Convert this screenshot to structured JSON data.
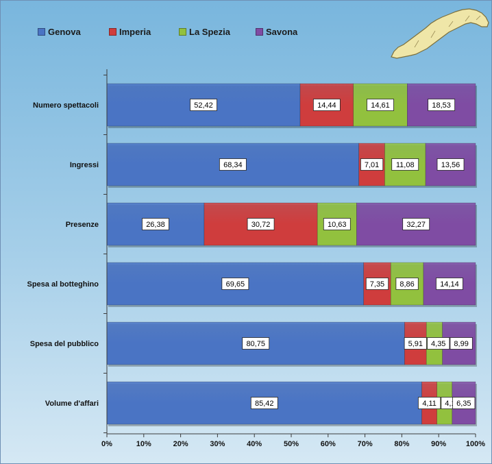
{
  "chart_data": {
    "type": "bar",
    "orientation": "horizontal",
    "stacked": true,
    "percent_stacked": true,
    "categories": [
      "Numero spettacoli",
      "Ingressi",
      "Presenze",
      "Spesa al botteghino",
      "Spesa del pubblico",
      "Volume d'affari"
    ],
    "series": [
      {
        "name": "Genova",
        "color": "#4a74c4",
        "values": [
          52.42,
          68.34,
          26.38,
          69.65,
          80.75,
          85.42
        ],
        "labels": [
          "52,42",
          "68,34",
          "26,38",
          "69,65",
          "80,75",
          "85,42"
        ]
      },
      {
        "name": "Imperia",
        "color": "#cf3d3d",
        "values": [
          14.44,
          7.01,
          30.72,
          7.35,
          5.91,
          4.11
        ],
        "labels": [
          "14,44",
          "7,01",
          "30,72",
          "7,35",
          "5,91",
          "4,11"
        ]
      },
      {
        "name": "La Spezia",
        "color": "#92c13e",
        "values": [
          14.61,
          11.08,
          10.63,
          8.86,
          4.35,
          4.12
        ],
        "labels": [
          "14,61",
          "11,08",
          "10,63",
          "8,86",
          "4,35",
          "4,12"
        ]
      },
      {
        "name": "Savona",
        "color": "#7f4ca3",
        "values": [
          18.53,
          13.56,
          32.27,
          14.14,
          8.99,
          6.35
        ],
        "labels": [
          "18,53",
          "13,56",
          "32,27",
          "14,14",
          "8,99",
          "6,35"
        ]
      }
    ],
    "xlim": [
      0,
      100
    ],
    "xticks": [
      "0%",
      "10%",
      "20%",
      "30%",
      "40%",
      "50%",
      "60%",
      "70%",
      "80%",
      "90%",
      "100%"
    ],
    "grid": false,
    "legend": "top-left",
    "title": "",
    "xlabel": "",
    "ylabel": ""
  },
  "map_icon": "liguria-region-map-icon"
}
